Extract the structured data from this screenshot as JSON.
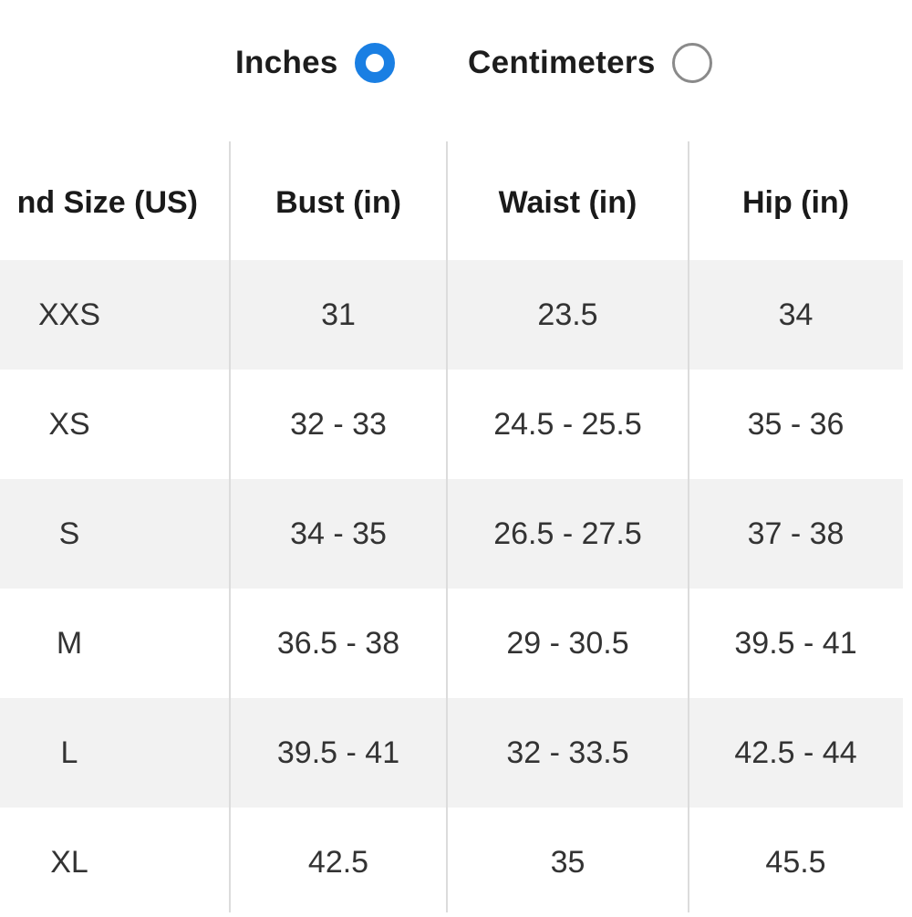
{
  "units": {
    "options": [
      {
        "label": "Inches",
        "selected": true
      },
      {
        "label": "Centimeters",
        "selected": false
      }
    ],
    "accent_color": "#1a7fe3"
  },
  "table": {
    "headers": [
      "nd Size (US)",
      "Bust (in)",
      "Waist (in)",
      "Hip (in)"
    ],
    "rows": [
      [
        "XXS",
        "31",
        "23.5",
        "34"
      ],
      [
        "XS",
        "32 - 33",
        "24.5 - 25.5",
        "35 - 36"
      ],
      [
        "S",
        "34 - 35",
        "26.5 - 27.5",
        "37 - 38"
      ],
      [
        "M",
        "36.5 - 38",
        "29 - 30.5",
        "39.5 - 41"
      ],
      [
        "L",
        "39.5 - 41",
        "32 - 33.5",
        "42.5 - 44"
      ],
      [
        "XL",
        "42.5",
        "35",
        "45.5"
      ]
    ]
  }
}
